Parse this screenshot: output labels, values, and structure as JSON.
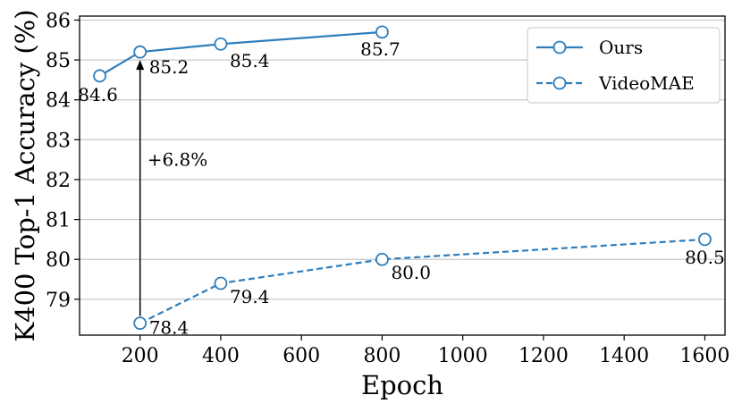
{
  "chart_data": {
    "type": "line",
    "xlabel": "Epoch",
    "ylabel": "K400 Top-1 Accuracy (%)",
    "xlim": [
      50,
      1650
    ],
    "ylim": [
      78.1,
      86.1
    ],
    "xticks": [
      200,
      400,
      600,
      800,
      1000,
      1200,
      1400,
      1600
    ],
    "yticks": [
      79,
      80,
      81,
      82,
      83,
      84,
      85,
      86
    ],
    "grid": "horizontal",
    "legend_position": "top-right",
    "series": [
      {
        "name": "Ours",
        "style": "solid",
        "color": "#2e7ebc",
        "x": [
          100,
          200,
          400,
          800
        ],
        "y": [
          84.6,
          85.2,
          85.4,
          85.7
        ],
        "labels": [
          "84.6",
          "85.2",
          "85.4",
          "85.7"
        ]
      },
      {
        "name": "VideoMAE",
        "style": "dashed",
        "color": "#2e7ebc",
        "x": [
          200,
          400,
          800,
          1600
        ],
        "y": [
          78.4,
          79.4,
          80.0,
          80.5
        ],
        "labels": [
          "78.4",
          "79.4",
          "80.0",
          "80.5"
        ]
      }
    ],
    "annotations": [
      {
        "text": "+6.8%",
        "x_from": 200,
        "y_from": 78.4,
        "x_to": 200,
        "y_to": 85.2
      }
    ]
  }
}
